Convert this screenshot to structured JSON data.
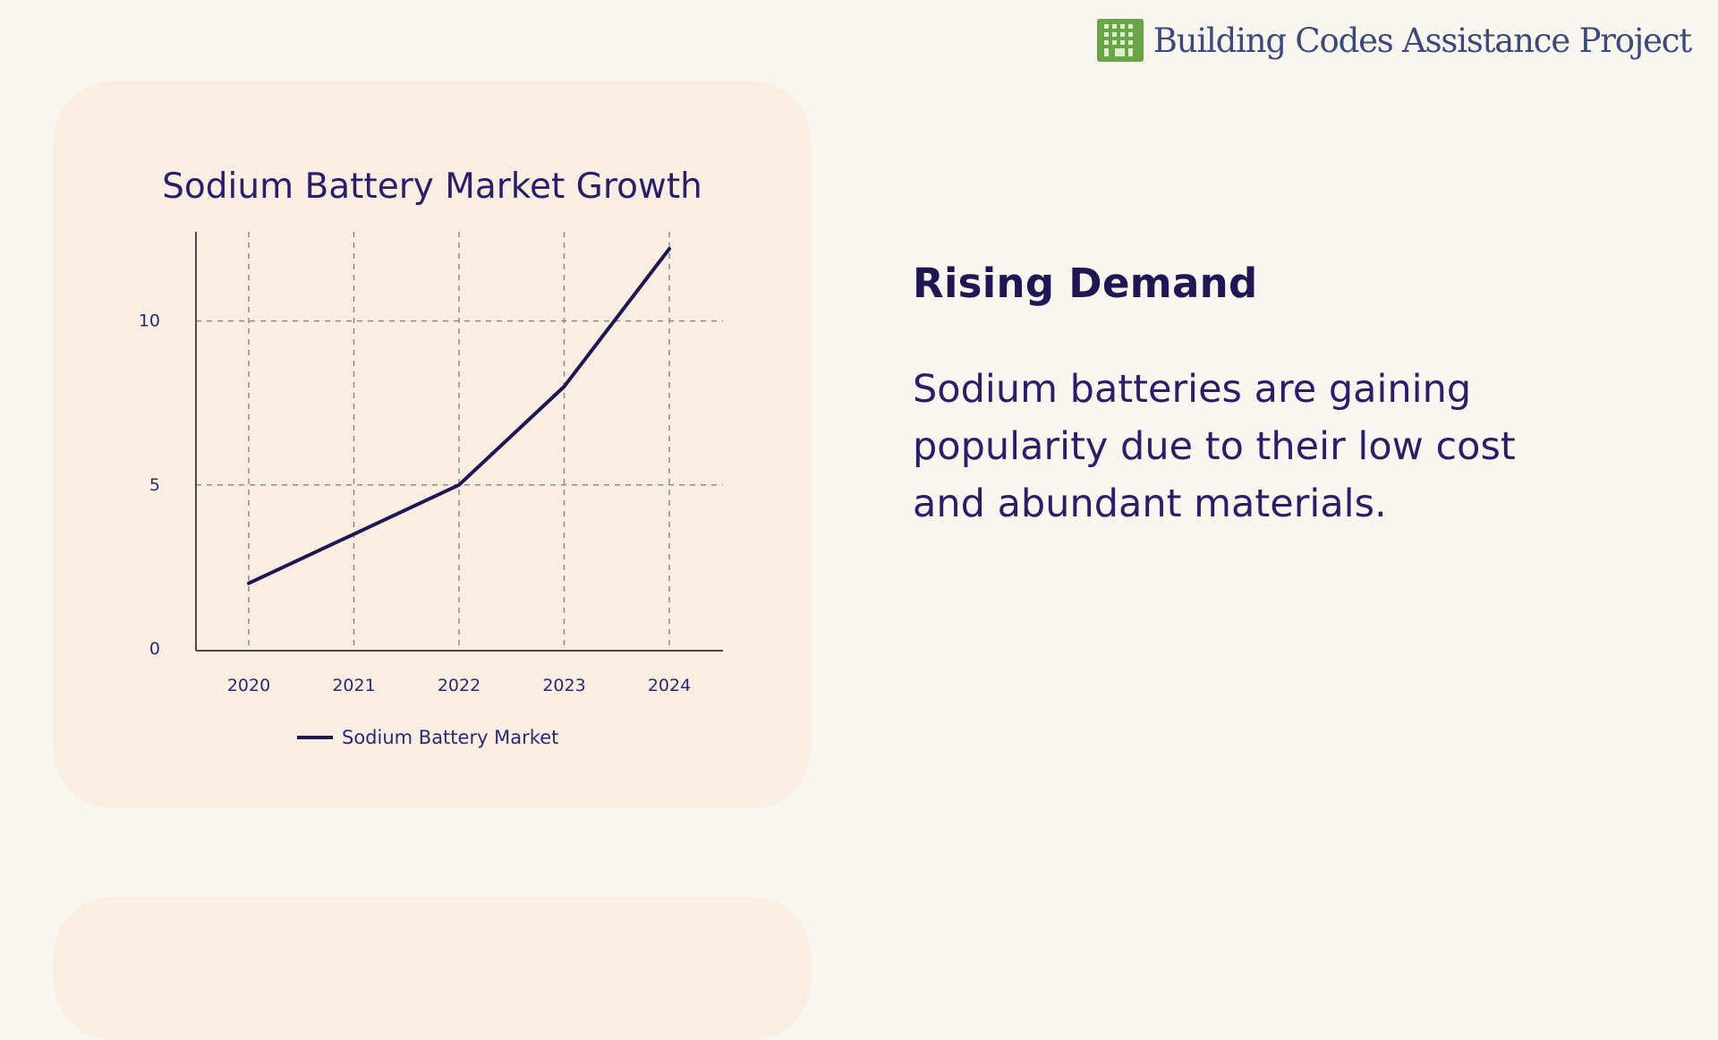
{
  "header": {
    "org_name": "Building Codes Assistance Project",
    "logo_icon": "building-icon",
    "logo_color": "#6ba446"
  },
  "colors": {
    "background": "#f9f5ef",
    "card": "#faeee3",
    "ink": "#2a1f66",
    "line": "#1f1652"
  },
  "chart_data": {
    "type": "line",
    "title": "Sodium Battery Market Growth",
    "x": [
      "2020",
      "2021",
      "2022",
      "2023",
      "2024"
    ],
    "series": [
      {
        "name": "Sodium Battery Market",
        "values": [
          2,
          3.5,
          5,
          8,
          12.2
        ],
        "color": "#1f1652"
      }
    ],
    "y_ticks": [
      0,
      5,
      10
    ],
    "ylim": [
      0,
      12.5
    ],
    "grid": true,
    "grid_style": "dashed",
    "legend": "bottom-center"
  },
  "content": {
    "heading": "Rising Demand",
    "body": "Sodium batteries are gaining popularity due to their low cost and abundant materials."
  }
}
